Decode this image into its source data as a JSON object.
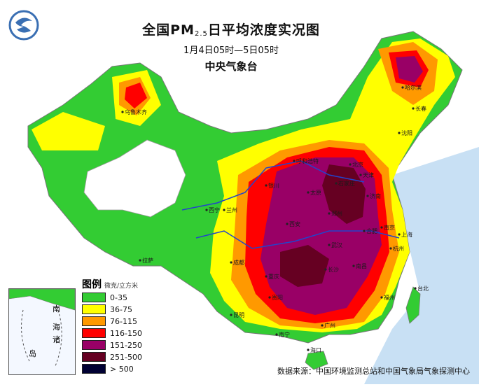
{
  "title": {
    "main_prefix": "全国PM",
    "main_subscript": "2.5",
    "main_suffix": "日平均浓度实况图",
    "date_range": "1月4日05时—5日05时",
    "organization": "中央气象台"
  },
  "legend": {
    "title": "图例",
    "unit": "微克/立方米",
    "items": [
      {
        "label": "0-35",
        "color": "#33cc33"
      },
      {
        "label": "36-75",
        "color": "#ffff00"
      },
      {
        "label": "76-115",
        "color": "#ff9900"
      },
      {
        "label": "116-150",
        "color": "#ff0000"
      },
      {
        "label": "151-250",
        "color": "#990066"
      },
      {
        "label": "251-500",
        "color": "#660022"
      },
      {
        "label": "> 500",
        "color": "#000033"
      }
    ]
  },
  "inset": {
    "labels": [
      "南",
      "海",
      "诸",
      "岛"
    ]
  },
  "cities": [
    {
      "name": "乌鲁木齐"
    },
    {
      "name": "哈尔滨"
    },
    {
      "name": "长春"
    },
    {
      "name": "沈阳"
    },
    {
      "name": "北京"
    },
    {
      "name": "天津"
    },
    {
      "name": "呼和浩特"
    },
    {
      "name": "石家庄"
    },
    {
      "name": "太原"
    },
    {
      "name": "济南"
    },
    {
      "name": "郑州"
    },
    {
      "name": "西安"
    },
    {
      "name": "银川"
    },
    {
      "name": "兰州"
    },
    {
      "name": "西宁"
    },
    {
      "name": "拉萨"
    },
    {
      "name": "成都"
    },
    {
      "name": "重庆"
    },
    {
      "name": "武汉"
    },
    {
      "name": "合肥"
    },
    {
      "name": "南京"
    },
    {
      "name": "上海"
    },
    {
      "name": "杭州"
    },
    {
      "name": "长沙"
    },
    {
      "name": "南昌"
    },
    {
      "name": "福州"
    },
    {
      "name": "贵阳"
    },
    {
      "name": "昆明"
    },
    {
      "name": "南宁"
    },
    {
      "name": "广州"
    },
    {
      "name": "海口"
    },
    {
      "name": "台北"
    }
  ],
  "source": "数据来源：中国环境监测总站和中国气象局气象探测中心"
}
